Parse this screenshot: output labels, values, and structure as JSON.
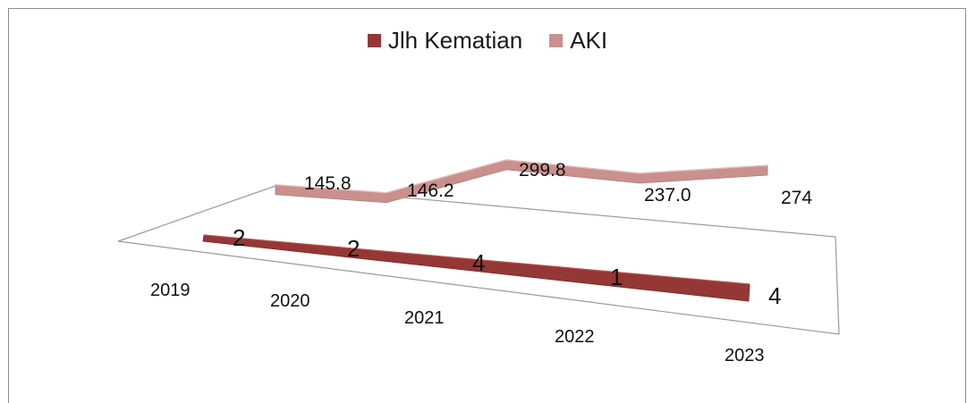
{
  "chart_data": {
    "type": "line",
    "categories": [
      "2019",
      "2020",
      "2021",
      "2022",
      "2023"
    ],
    "series": [
      {
        "name": "Jlh Kematian",
        "values": [
          2,
          2,
          4,
          1,
          4
        ],
        "labels": [
          "2",
          "2",
          "4",
          "1",
          "4"
        ],
        "color": "#953735"
      },
      {
        "name": "AKI",
        "values": [
          145.8,
          146.2,
          299.8,
          237.0,
          274
        ],
        "labels": [
          "145.8",
          "146.2",
          "299.8",
          "237.0",
          "274"
        ],
        "color": "#c9908e"
      }
    ],
    "grid": false,
    "legend_position": "top",
    "style": "3d"
  }
}
